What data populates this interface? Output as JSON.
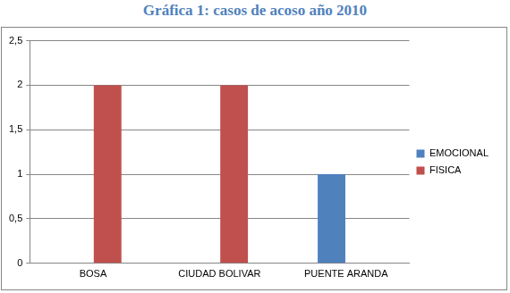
{
  "chart_data": {
    "type": "bar",
    "title": "Gráfica 1: casos de acoso año 2010",
    "categories": [
      "BOSA",
      "CIUDAD BOLIVAR",
      "PUENTE ARANDA"
    ],
    "series": [
      {
        "name": "EMOCIONAL",
        "color": "#4f81bd",
        "values": [
          0,
          0,
          1
        ]
      },
      {
        "name": "FISICA",
        "color": "#c0504d",
        "values": [
          2,
          2,
          0
        ]
      }
    ],
    "ylim": [
      0,
      2.5
    ],
    "yticks": [
      0,
      {
        "value": 0.5,
        "label": "0,5"
      },
      1,
      {
        "value": 1.5,
        "label": "1,5"
      },
      2,
      {
        "value": 2.5,
        "label": "2,5"
      }
    ],
    "grid": true,
    "legend": "right"
  }
}
